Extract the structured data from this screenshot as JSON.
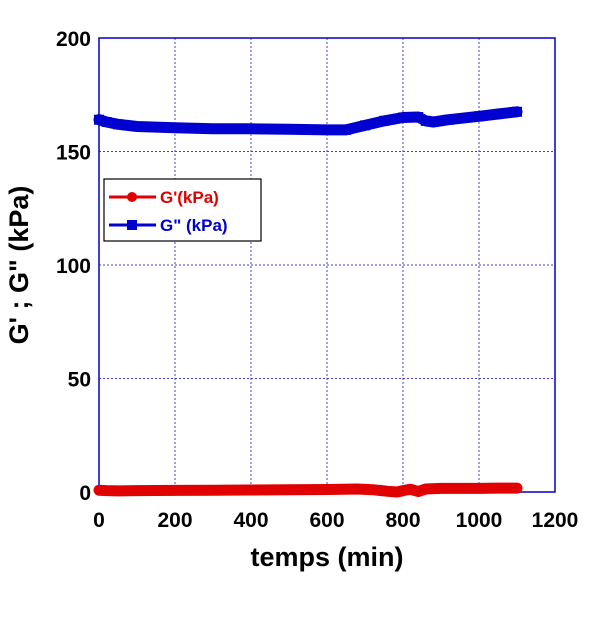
{
  "chart_data": {
    "type": "line",
    "title": "",
    "xlabel": "temps (min)",
    "ylabel": "G' ; G\" (kPa)",
    "xlim": [
      0,
      1200
    ],
    "ylim": [
      0,
      200
    ],
    "xticks": [
      0,
      200,
      400,
      600,
      800,
      1000,
      1200
    ],
    "yticks": [
      0,
      50,
      100,
      150,
      200
    ],
    "xtick_labels": [
      "0",
      "200",
      "400",
      "600",
      "800",
      "1000",
      "1200"
    ],
    "ytick_labels": [
      "0",
      "50",
      "100",
      "150",
      "200"
    ],
    "grid": true,
    "legend_position": "left",
    "series": [
      {
        "name": "G'(kPa)",
        "color": "#e00000",
        "marker": "circle",
        "x": [
          0,
          20,
          50,
          100,
          200,
          300,
          400,
          500,
          600,
          680,
          720,
          760,
          785,
          800,
          820,
          840,
          860,
          900,
          950,
          1000,
          1050,
          1100
        ],
        "y": [
          0.8,
          0.6,
          0.5,
          0.6,
          0.7,
          0.8,
          0.9,
          1.0,
          1.1,
          1.3,
          1.0,
          0.3,
          0.0,
          0.6,
          1.2,
          0.2,
          1.3,
          1.6,
          1.6,
          1.6,
          1.7,
          1.7
        ]
      },
      {
        "name": "G\" (kPa)",
        "color": "#0000d0",
        "marker": "square",
        "x": [
          0,
          20,
          50,
          100,
          200,
          300,
          400,
          500,
          600,
          650,
          700,
          750,
          800,
          840,
          860,
          880,
          920,
          1000,
          1050,
          1100
        ],
        "y": [
          164,
          163,
          162,
          161,
          160.5,
          160,
          160,
          159.8,
          159.5,
          159.5,
          161.5,
          163.5,
          165,
          165.2,
          163.5,
          163,
          164,
          165.5,
          166.5,
          167.5
        ]
      }
    ]
  }
}
